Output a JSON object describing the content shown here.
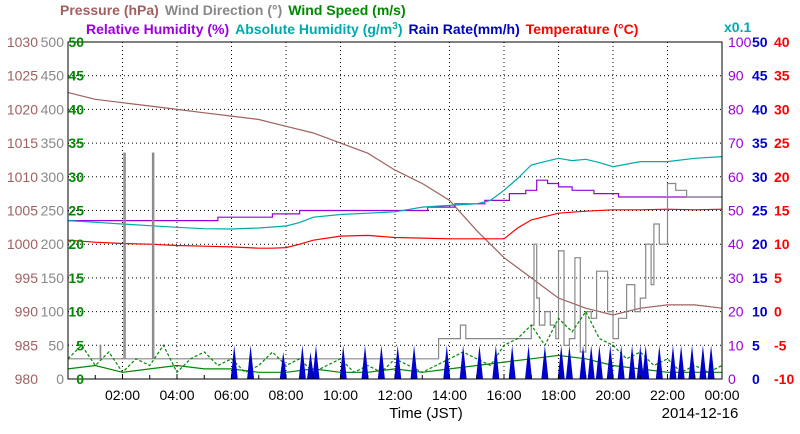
{
  "chart_data": {
    "type": "line",
    "x_axis": {
      "label": "Time (JST)",
      "date": "2014-12-16",
      "range_hours": [
        0,
        24
      ],
      "tick_hours": [
        2,
        4,
        6,
        8,
        10,
        12,
        14,
        16,
        18,
        20,
        22,
        24
      ],
      "tick_labels": [
        "02:00",
        "04:00",
        "06:00",
        "08:00",
        "10:00",
        "12:00",
        "14:00",
        "16:00",
        "18:00",
        "20:00",
        "22:00",
        "00:00"
      ]
    },
    "legend_row1": [
      {
        "text": "Pressure (hPa)",
        "color": "#a06060"
      },
      {
        "text": "Wind Direction (°)",
        "color": "#888888"
      },
      {
        "text": "Wind Speed (m/s)",
        "color": "#008800"
      }
    ],
    "legend_row2": [
      {
        "text": "Relative Humidity (%)",
        "color": "#9900dd"
      },
      {
        "text": "Absolute Humidity (g/m",
        "sup": "3",
        "close": ")",
        "color": "#00aaaa"
      },
      {
        "text": "Rain Rate(mm/h)",
        "color": "#0000cc"
      },
      {
        "text": "Temperature (°C)",
        "color": "#ff0000"
      }
    ],
    "scale_note": {
      "text": "x0.1",
      "color": "#00aaaa"
    },
    "axes": {
      "pressure": {
        "color": "#a06060",
        "min": 980,
        "max": 1030,
        "ticks": [
          "980",
          "985",
          "990",
          "995",
          "1000",
          "1005",
          "1010",
          "1015",
          "1020",
          "1025",
          "1030"
        ]
      },
      "wind_direction": {
        "color": "#888888",
        "min": 0,
        "max": 500,
        "ticks": [
          "0",
          "50",
          "100",
          "150",
          "200",
          "250",
          "300",
          "350",
          "400",
          "450",
          "500"
        ]
      },
      "wind_speed": {
        "color": "#008800",
        "min": 0,
        "max": 50,
        "ticks": [
          "0",
          "5",
          "10",
          "15",
          "20",
          "25",
          "30",
          "35",
          "40",
          "45",
          "50"
        ]
      },
      "relative_humidity": {
        "color": "#9900dd",
        "min": 0,
        "max": 100,
        "ticks": [
          "0",
          "10",
          "20",
          "30",
          "40",
          "50",
          "60",
          "70",
          "80",
          "90",
          "100"
        ]
      },
      "rain_rate": {
        "color": "#0000cc",
        "min": 0,
        "max": 50,
        "ticks": [
          "0",
          "5",
          "10",
          "15",
          "20",
          "25",
          "30",
          "35",
          "40",
          "45",
          "50"
        ]
      },
      "temperature": {
        "color": "#ff0000",
        "min": -10,
        "max": 40,
        "ticks": [
          "-10",
          "-5",
          "0",
          "5",
          "10",
          "15",
          "20",
          "25",
          "30",
          "35",
          "40"
        ]
      }
    },
    "series": [
      {
        "key": "pressure",
        "color": "#a06060",
        "step": false,
        "dash": "",
        "x": [
          0,
          1,
          2,
          3,
          4,
          5,
          6,
          7,
          8,
          9,
          10,
          11,
          12,
          13,
          14,
          15,
          16,
          17,
          18,
          19,
          20,
          21,
          22,
          23,
          24
        ],
        "values": [
          1022.5,
          1021.5,
          1021,
          1020.5,
          1020,
          1019.5,
          1019,
          1018.5,
          1017.5,
          1016.5,
          1015,
          1013.5,
          1011,
          1009,
          1006.5,
          1002,
          998,
          995,
          992,
          990.5,
          989.5,
          990.5,
          991,
          991,
          990.5
        ]
      },
      {
        "key": "temperature",
        "color": "#ff0000",
        "step": false,
        "dash": "",
        "x": [
          0,
          1,
          2,
          3,
          4,
          5,
          6,
          7,
          7.5,
          8,
          8.5,
          9,
          10,
          11,
          12,
          13,
          14,
          15,
          15.5,
          16,
          16.5,
          17,
          18,
          19,
          20,
          21,
          22,
          23,
          24
        ],
        "values": [
          10.6,
          10.3,
          10.1,
          10.0,
          9.8,
          9.7,
          9.6,
          9.4,
          9.4,
          9.5,
          10.0,
          10.6,
          11.2,
          11.3,
          11.0,
          10.9,
          10.8,
          10.8,
          10.8,
          10.8,
          12.4,
          13.6,
          14.6,
          14.9,
          15.1,
          15.1,
          15.2,
          15.1,
          15.2
        ]
      },
      {
        "key": "relative_humidity",
        "color": "#9900dd",
        "step": true,
        "dash": "",
        "x": [
          0,
          3.2,
          5.5,
          7.5,
          8.5,
          10,
          12,
          13.2,
          14.2,
          15.3,
          16.2,
          16.8,
          17.2,
          17.6,
          18,
          18.5,
          19.3,
          20.2,
          24
        ],
        "values": [
          47,
          47,
          48,
          49,
          50,
          50,
          50,
          51,
          52,
          53,
          55,
          56,
          59,
          58,
          57,
          56,
          55,
          54,
          54
        ]
      },
      {
        "key": "absolute_humidity_x0.1",
        "color": "#00aaaa",
        "step": false,
        "dash": "",
        "x": [
          0,
          1,
          2,
          3,
          4,
          5,
          6,
          7,
          8,
          8.5,
          9,
          10,
          11,
          12,
          13,
          14,
          15,
          15.5,
          16,
          16.5,
          17,
          17.5,
          18,
          18.5,
          19,
          19.5,
          20,
          21,
          22,
          23,
          24
        ],
        "values": [
          47,
          46.5,
          46,
          45.5,
          45,
          44.6,
          44.5,
          44.8,
          45.4,
          46.4,
          48,
          48.8,
          49.2,
          49.6,
          51,
          51.5,
          52,
          53,
          56,
          59.5,
          63.5,
          64.5,
          65.5,
          64.8,
          65.2,
          64.2,
          63,
          64.5,
          64.5,
          65.5,
          66
        ]
      },
      {
        "key": "wind_direction",
        "color": "#888888",
        "step": true,
        "dash": "",
        "x": [
          0,
          1.15,
          1.18,
          1.2,
          1.25,
          2.05,
          2.1,
          2.15,
          2.2,
          3.05,
          3.1,
          3.15,
          3.2,
          3.25,
          13.4,
          13.6,
          14,
          14.4,
          14.6,
          15,
          15.2,
          16.8,
          17,
          17.1,
          17.2,
          17.3,
          17.5,
          17.7,
          17.9,
          18,
          18.2,
          18.4,
          18.6,
          18.8,
          19,
          19.2,
          19.4,
          19.8,
          20,
          20.2,
          20.5,
          20.8,
          21,
          21.2,
          21.4,
          21.5,
          21.7,
          22,
          22.3,
          22.7,
          24
        ],
        "values": [
          30,
          30,
          50,
          30,
          30,
          335,
          30,
          30,
          30,
          30,
          335,
          30,
          30,
          30,
          30,
          60,
          60,
          80,
          60,
          60,
          60,
          60,
          80,
          200,
          120,
          80,
          100,
          80,
          60,
          190,
          50,
          60,
          180,
          40,
          100,
          90,
          160,
          100,
          60,
          90,
          140,
          100,
          120,
          200,
          140,
          230,
          200,
          290,
          280,
          270,
          270
        ]
      },
      {
        "key": "wind_speed",
        "color": "#008800",
        "step": false,
        "dash": "3,2",
        "x": [
          0,
          0.5,
          1,
          1.5,
          2,
          2.5,
          3,
          3.5,
          4,
          4.5,
          5,
          5.5,
          6,
          6.5,
          7,
          7.5,
          8,
          8.5,
          9,
          9.5,
          10,
          10.5,
          11,
          11.5,
          12,
          12.5,
          13,
          13.5,
          14,
          14.5,
          15,
          15.5,
          16,
          16.5,
          17,
          17.5,
          18,
          18.5,
          19,
          19.5,
          20,
          20.5,
          21,
          21.5,
          22,
          22.5,
          23,
          23.5,
          24
        ],
        "values": [
          3,
          5,
          2,
          4,
          1,
          3,
          2,
          5,
          1,
          3,
          4,
          2,
          3,
          1,
          2,
          4,
          2,
          3,
          1,
          2,
          3,
          1,
          2,
          1,
          3,
          2,
          1,
          2,
          3,
          4,
          3,
          2,
          5,
          6,
          8,
          5,
          9,
          7,
          10,
          6,
          5,
          3,
          4,
          2,
          3,
          1,
          2,
          1,
          2
        ]
      },
      {
        "key": "wind_speed_avg",
        "color": "#008800",
        "step": false,
        "dash": "",
        "x": [
          0,
          1,
          2,
          3,
          4,
          5,
          6,
          7,
          8,
          9,
          10,
          11,
          12,
          13,
          14,
          15,
          16,
          17,
          18,
          19,
          20,
          21,
          22,
          23,
          24
        ],
        "values": [
          1.5,
          2,
          1,
          1.5,
          2,
          1.5,
          1.5,
          1,
          1,
          1.5,
          1,
          1,
          1.5,
          1,
          1.5,
          2,
          2.5,
          3,
          3.5,
          3,
          2,
          1.5,
          1,
          1,
          1
        ]
      }
    ],
    "rain_spikes": {
      "color": "#0000cc",
      "x": [
        6.1,
        6.7,
        7.9,
        8.6,
        8.9,
        9.1,
        10.1,
        10.9,
        11.5,
        12.1,
        12.7,
        13.9,
        14.5,
        15.1,
        15.7,
        16.3,
        16.9,
        17.5,
        18.1,
        18.4,
        18.9,
        19.2,
        19.5,
        19.9,
        20.3,
        20.7,
        21.0,
        21.2,
        21.7,
        22.2,
        22.5,
        22.9,
        23.3,
        23.6
      ],
      "values": [
        5,
        5,
        4,
        5,
        4,
        5,
        5,
        5,
        5,
        5,
        5,
        5,
        5,
        5,
        5,
        5,
        5,
        5,
        5,
        5,
        5,
        5,
        5,
        5,
        5,
        5,
        5,
        5,
        5,
        5,
        5,
        5,
        5,
        5
      ]
    }
  }
}
